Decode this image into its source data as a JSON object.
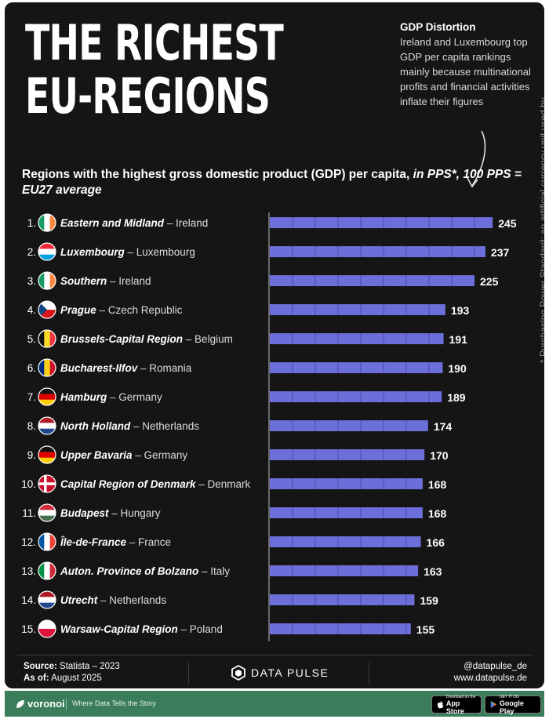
{
  "header": {
    "title_line1": "THE RICHEST",
    "title_line2": "EU-REGIONS"
  },
  "callout": {
    "heading": "GDP Distortion",
    "text": "Ireland and Luxembourg top GDP per capita rankings mainly because multinational profits and financial activities inflate their figures"
  },
  "chart_data": {
    "type": "bar",
    "orientation": "horizontal",
    "title": "Regions with the highest gross domestic product (GDP) per capita,",
    "title_italic": "in PPS*, 100 PPS = EU27 average",
    "xlabel": "",
    "ylabel": "",
    "xlim": [
      0,
      250
    ],
    "grid": true,
    "rows": [
      {
        "rank": "1.",
        "region": "Eastern and Midland",
        "country": "– Ireland",
        "value": 245,
        "flag": "ireland"
      },
      {
        "rank": "2.",
        "region": "Luxembourg",
        "country": "– Luxembourg",
        "value": 237,
        "flag": "luxembourg"
      },
      {
        "rank": "3.",
        "region": "Southern",
        "country": "– Ireland",
        "value": 225,
        "flag": "ireland"
      },
      {
        "rank": "4.",
        "region": "Prague",
        "country": "– Czech Republic",
        "value": 193,
        "flag": "czechia"
      },
      {
        "rank": "5.",
        "region": "Brussels-Capital Region",
        "country": "– Belgium",
        "value": 191,
        "flag": "belgium"
      },
      {
        "rank": "6.",
        "region": "Bucharest-Ilfov",
        "country": "– Romania",
        "value": 190,
        "flag": "romania"
      },
      {
        "rank": "7.",
        "region": "Hamburg",
        "country": "– Germany",
        "value": 189,
        "flag": "germany"
      },
      {
        "rank": "8.",
        "region": "North Holland",
        "country": "– Netherlands",
        "value": 174,
        "flag": "netherlands"
      },
      {
        "rank": "9.",
        "region": "Upper Bavaria",
        "country": "– Germany",
        "value": 170,
        "flag": "germany"
      },
      {
        "rank": "10.",
        "region": "Capital Region of Denmark",
        "country": "– Denmark",
        "value": 168,
        "flag": "denmark"
      },
      {
        "rank": "11.",
        "region": "Budapest",
        "country": "– Hungary",
        "value": 168,
        "flag": "hungary"
      },
      {
        "rank": "12.",
        "region": "Île-de-France",
        "country": "– France",
        "value": 166,
        "flag": "france"
      },
      {
        "rank": "13.",
        "region": "Auton. Province of Bolzano",
        "country": "– Italy",
        "value": 163,
        "flag": "italy"
      },
      {
        "rank": "14.",
        "region": "Utrecht",
        "country": "– Netherlands",
        "value": 159,
        "flag": "netherlands"
      },
      {
        "rank": "15.",
        "region": "Warsaw-Capital Region",
        "country": "– Poland",
        "value": 155,
        "flag": "poland"
      }
    ],
    "bar_color": "#6c6ed9"
  },
  "footnote": "* Purchasing Power Standard: an artificial currency unit used by the EU that adjusts for price differences between countries",
  "footer": {
    "source_label": "Source:",
    "source_value": "Statista – 2023",
    "asof_label": "As of:",
    "asof_value": "August 2025",
    "brand": "DATA PULSE",
    "handle": "@datapulse_de",
    "website": "www.datapulse.de"
  },
  "bottom_bar": {
    "logo": "voronoi",
    "tagline": "Where Data Tells the Story",
    "appstore_small": "Download on the",
    "appstore_big": "App Store",
    "googleplay_small": "GET IT ON",
    "googleplay_big": "Google Play"
  },
  "colors": {
    "background": "#151515",
    "bar": "#6c6ed9",
    "accent_green": "#3b7d5b"
  }
}
